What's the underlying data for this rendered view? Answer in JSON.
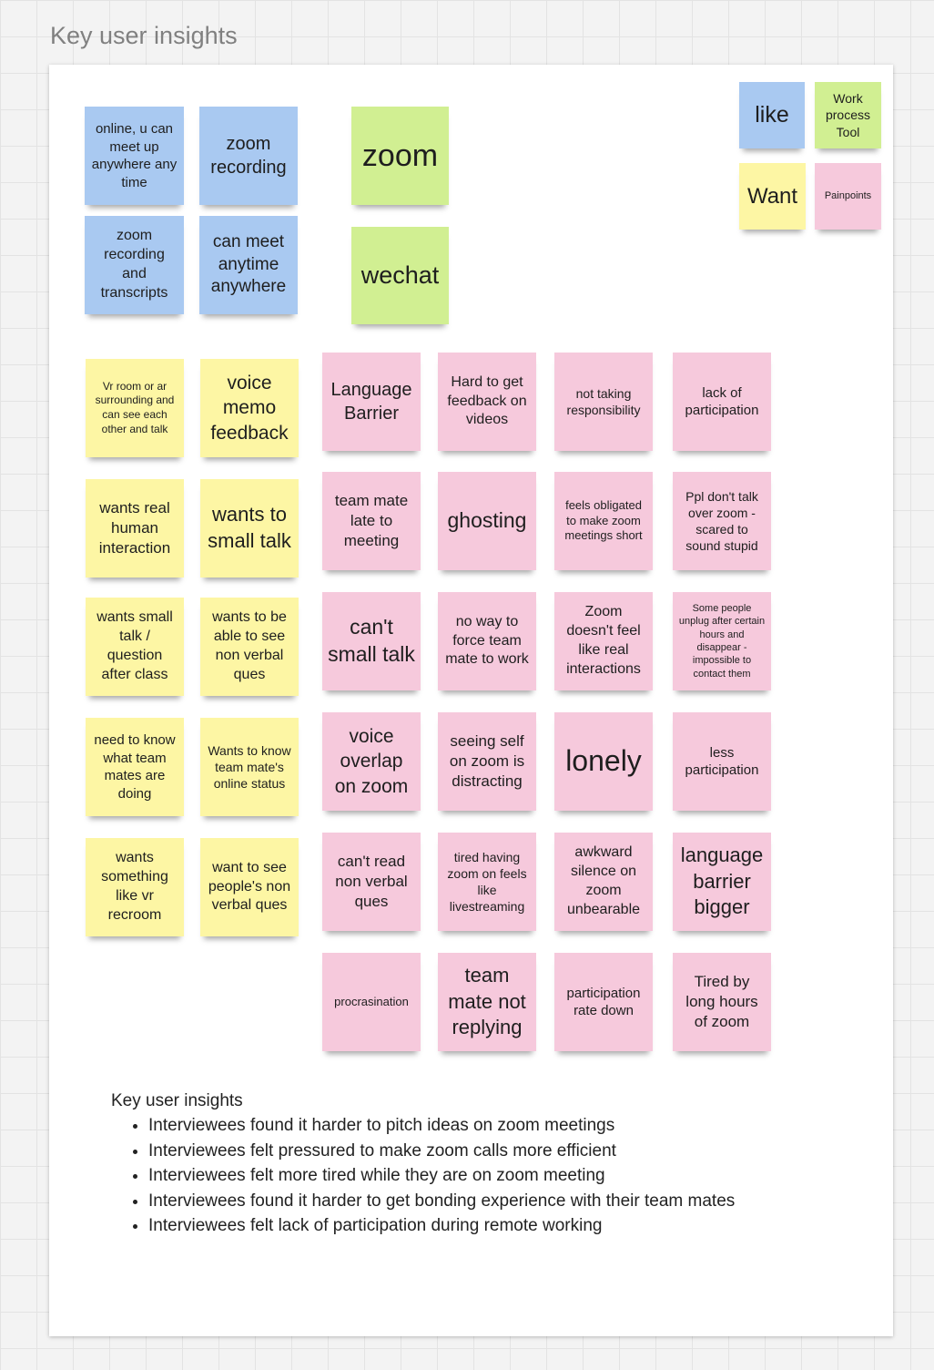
{
  "title": "Key user insights",
  "legend": [
    {
      "text": "like",
      "color": "#a9c9f1"
    },
    {
      "text": "Work process Tool",
      "color": "#d1ef92"
    },
    {
      "text": "Want",
      "color": "#fdf6a4"
    },
    {
      "text": "Painpoints",
      "color": "#f6c9dc"
    }
  ],
  "groups": [
    {
      "color": "#a9c9f1",
      "notes": [
        "online, u can meet up anywhere any time",
        "zoom recording",
        "zoom recording and transcripts",
        "can meet anytime anywhere"
      ]
    },
    {
      "color": "#d1ef92",
      "notes": [
        "zoom",
        "wechat"
      ]
    },
    {
      "color": "#fdf6a4",
      "notes": [
        "Vr room or ar surrounding and can see each other and talk",
        "voice memo feedback",
        "wants real human interaction",
        "wants to small talk",
        "wants small talk / question after class",
        "wants to be able to see non verbal ques",
        "need to know what team mates are doing",
        "Wants to know team mate's online status",
        "wants something like vr recroom",
        "want to see people's non verbal ques"
      ]
    },
    {
      "color": "#f6c9dc",
      "notes": [
        "Language Barrier",
        "Hard to get feedback on videos",
        "not taking responsibility",
        "lack of participation",
        "team mate late to meeting",
        "ghosting",
        "feels obligated to make zoom meetings short",
        "Ppl don't talk over zoom - scared to sound stupid",
        "can't small talk",
        "no way to force team mate to work",
        "Zoom doesn't feel like real interactions",
        "Some people unplug after certain hours and disappear - impossible to contact them",
        "voice overlap on zoom",
        "seeing self on zoom is distracting",
        "lonely",
        "less participation",
        "can't read non verbal ques",
        "tired having zoom on feels like livestreaming",
        "awkward silence on zoom unbearable",
        "language barrier bigger",
        "procrasination",
        "team mate not replying",
        "participation rate down",
        "Tired by long hours of zoom"
      ]
    }
  ],
  "insights": {
    "heading": "Key user insights",
    "items": [
      "Interviewees found it harder to pitch ideas on zoom meetings",
      "Interviewees felt pressured to make zoom calls more efficient",
      "Interviewees felt more tired while they are on zoom meeting",
      "Interviewees found it harder to get bonding experience with their team mates",
      "Interviewees felt lack of participation during remote working"
    ]
  }
}
